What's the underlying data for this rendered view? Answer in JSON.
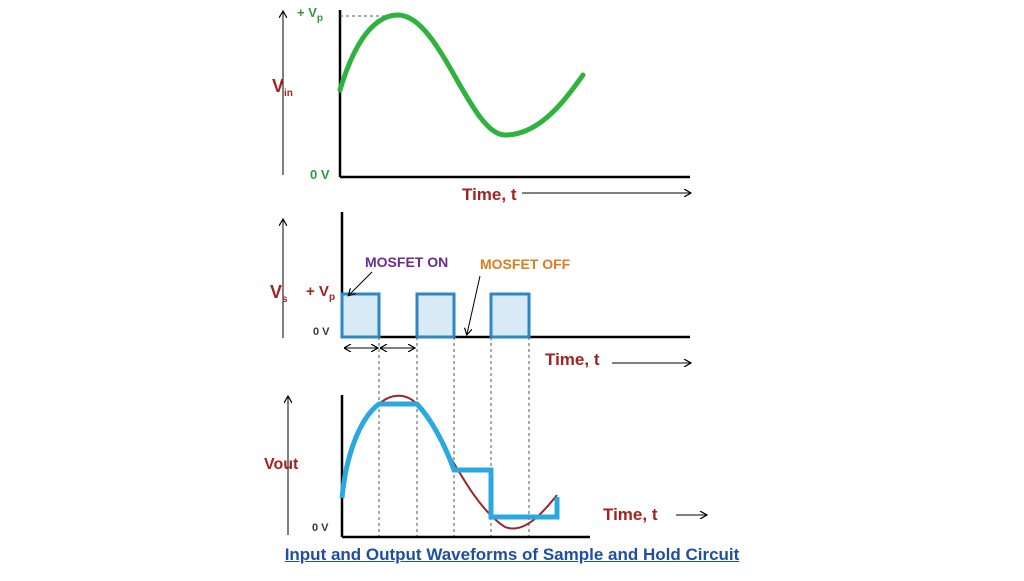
{
  "vin": {
    "axis": "V",
    "sub": "in",
    "peak": "+ V",
    "peak_sub": "p",
    "zero": "0 V",
    "time": "Time, t"
  },
  "vs": {
    "axis": "V",
    "sub": "s",
    "peak": "+ V",
    "peak_sub": "p",
    "zero": "0 V",
    "time": "Time, t",
    "mosfet_on": "MOSFET ON",
    "mosfet_off": "MOSFET OFF"
  },
  "vout": {
    "axis": "Vout",
    "zero": "0 V",
    "time": "Time, t"
  },
  "caption": "Input and Output Waveforms of Sample and Hold Circuit",
  "colors": {
    "sine": "#2eb33f",
    "pulse": "#2f86c7",
    "pulse_fill": "#d8eaf6",
    "input_trace": "#a32222",
    "output_trace": "#29a9e0",
    "axis": "#000000",
    "label_red": "#a32222",
    "label_green": "#2e9b3a",
    "purple": "#6a2c91",
    "orange": "#e07b1e",
    "caption_blue": "#1f4fa3"
  }
}
